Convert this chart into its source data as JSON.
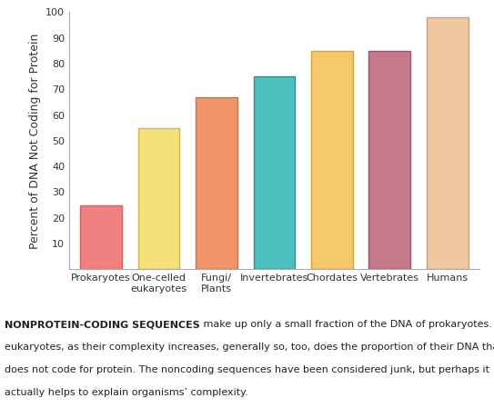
{
  "categories": [
    "Prokaryotes",
    "One-celled\neukaryotes",
    "Fungi/\nPlants",
    "Invertebrates",
    "Chordates",
    "Vertebrates",
    "Humans"
  ],
  "values": [
    25,
    55,
    67,
    75,
    85,
    85,
    98
  ],
  "bar_colors": [
    "#f08080",
    "#f5e07a",
    "#f0956a",
    "#4dbfbf",
    "#f5c96a",
    "#c47a8a",
    "#f0c8a0"
  ],
  "bar_edge_colors": [
    "#d46060",
    "#d4b840",
    "#d07040",
    "#2a9090",
    "#d4a040",
    "#a05070",
    "#d0a070"
  ],
  "ylabel": "Percent of DNA Not Coding for Protein",
  "ylim": [
    0,
    100
  ],
  "yticks": [
    10,
    20,
    30,
    40,
    50,
    60,
    70,
    80,
    90,
    100
  ],
  "caption_line1_bold": "NONPROTEIN-CODING SEQUENCES",
  "caption_line1_rest": " make up only a small fraction of the DNA of prokaryotes. Among",
  "caption_line2": "eukaryotes, as their complexity increases, generally so, too, does the proportion of their DNA that",
  "caption_line3": "does not code for protein. The noncoding sequences have been considered junk, but perhaps it",
  "caption_line4": "actually helps to explain organisms’ complexity.",
  "background_color": "#ffffff",
  "tick_label_fontsize": 8,
  "ylabel_fontsize": 9,
  "caption_fontsize": 8
}
